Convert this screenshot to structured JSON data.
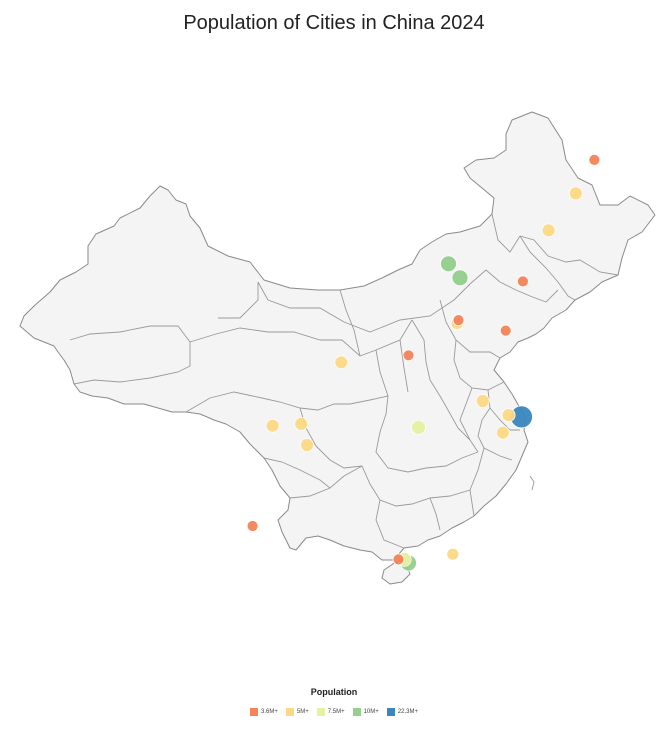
{
  "title": "Population of Cities in China 2024",
  "legend": {
    "title": "Population",
    "items": [
      {
        "label": "3.6M+",
        "color": "#f4845a"
      },
      {
        "label": "5M+",
        "color": "#fdd985"
      },
      {
        "label": "7.5M+",
        "color": "#e5f1a0"
      },
      {
        "label": "10M+",
        "color": "#94cf8c"
      },
      {
        "label": "22.3M+",
        "color": "#3a87c0"
      }
    ]
  },
  "cities": [
    {
      "tier": 0,
      "r": 5.5,
      "lng": 126.6,
      "lat": 45.8
    },
    {
      "tier": 1,
      "r": 6.5,
      "lng": 125.3,
      "lat": 43.9
    },
    {
      "tier": 1,
      "r": 6.5,
      "lng": 123.4,
      "lat": 41.8
    },
    {
      "tier": 0,
      "r": 5.5,
      "lng": 121.6,
      "lat": 38.9
    },
    {
      "tier": 3,
      "r": 8,
      "lng": 116.4,
      "lat": 39.9
    },
    {
      "tier": 3,
      "r": 8,
      "lng": 117.2,
      "lat": 39.1
    },
    {
      "tier": 0,
      "r": 5.5,
      "lng": 117.1,
      "lat": 36.7
    },
    {
      "tier": 1,
      "r": 6,
      "lng": 117.0,
      "lat": 36.5
    },
    {
      "tier": 0,
      "r": 5.5,
      "lng": 120.4,
      "lat": 36.1
    },
    {
      "tier": 0,
      "r": 5.5,
      "lng": 113.6,
      "lat": 34.7
    },
    {
      "tier": 1,
      "r": 6.5,
      "lng": 108.9,
      "lat": 34.3
    },
    {
      "tier": 1,
      "r": 6.5,
      "lng": 118.8,
      "lat": 32.1
    },
    {
      "tier": 1,
      "r": 6.5,
      "lng": 120.6,
      "lat": 31.3
    },
    {
      "tier": 1,
      "r": 6.5,
      "lng": 120.2,
      "lat": 30.3
    },
    {
      "tier": 4,
      "r": 11,
      "lng": 121.5,
      "lat": 31.2
    },
    {
      "tier": 2,
      "r": 7,
      "lng": 114.3,
      "lat": 30.6
    },
    {
      "tier": 1,
      "r": 6.5,
      "lng": 104.1,
      "lat": 30.7
    },
    {
      "tier": 1,
      "r": 6.5,
      "lng": 106.5,
      "lat": 29.6
    },
    {
      "tier": 1,
      "r": 6.5,
      "lng": 106.1,
      "lat": 30.8
    },
    {
      "tier": 0,
      "r": 5.5,
      "lng": 102.7,
      "lat": 25.0
    },
    {
      "tier": 3,
      "r": 8,
      "lng": 113.6,
      "lat": 22.9
    },
    {
      "tier": 2,
      "r": 7,
      "lng": 113.3,
      "lat": 23.1
    },
    {
      "tier": 0,
      "r": 5.5,
      "lng": 112.9,
      "lat": 23.1
    },
    {
      "tier": 1,
      "r": 6,
      "lng": 116.7,
      "lat": 23.4
    }
  ]
}
